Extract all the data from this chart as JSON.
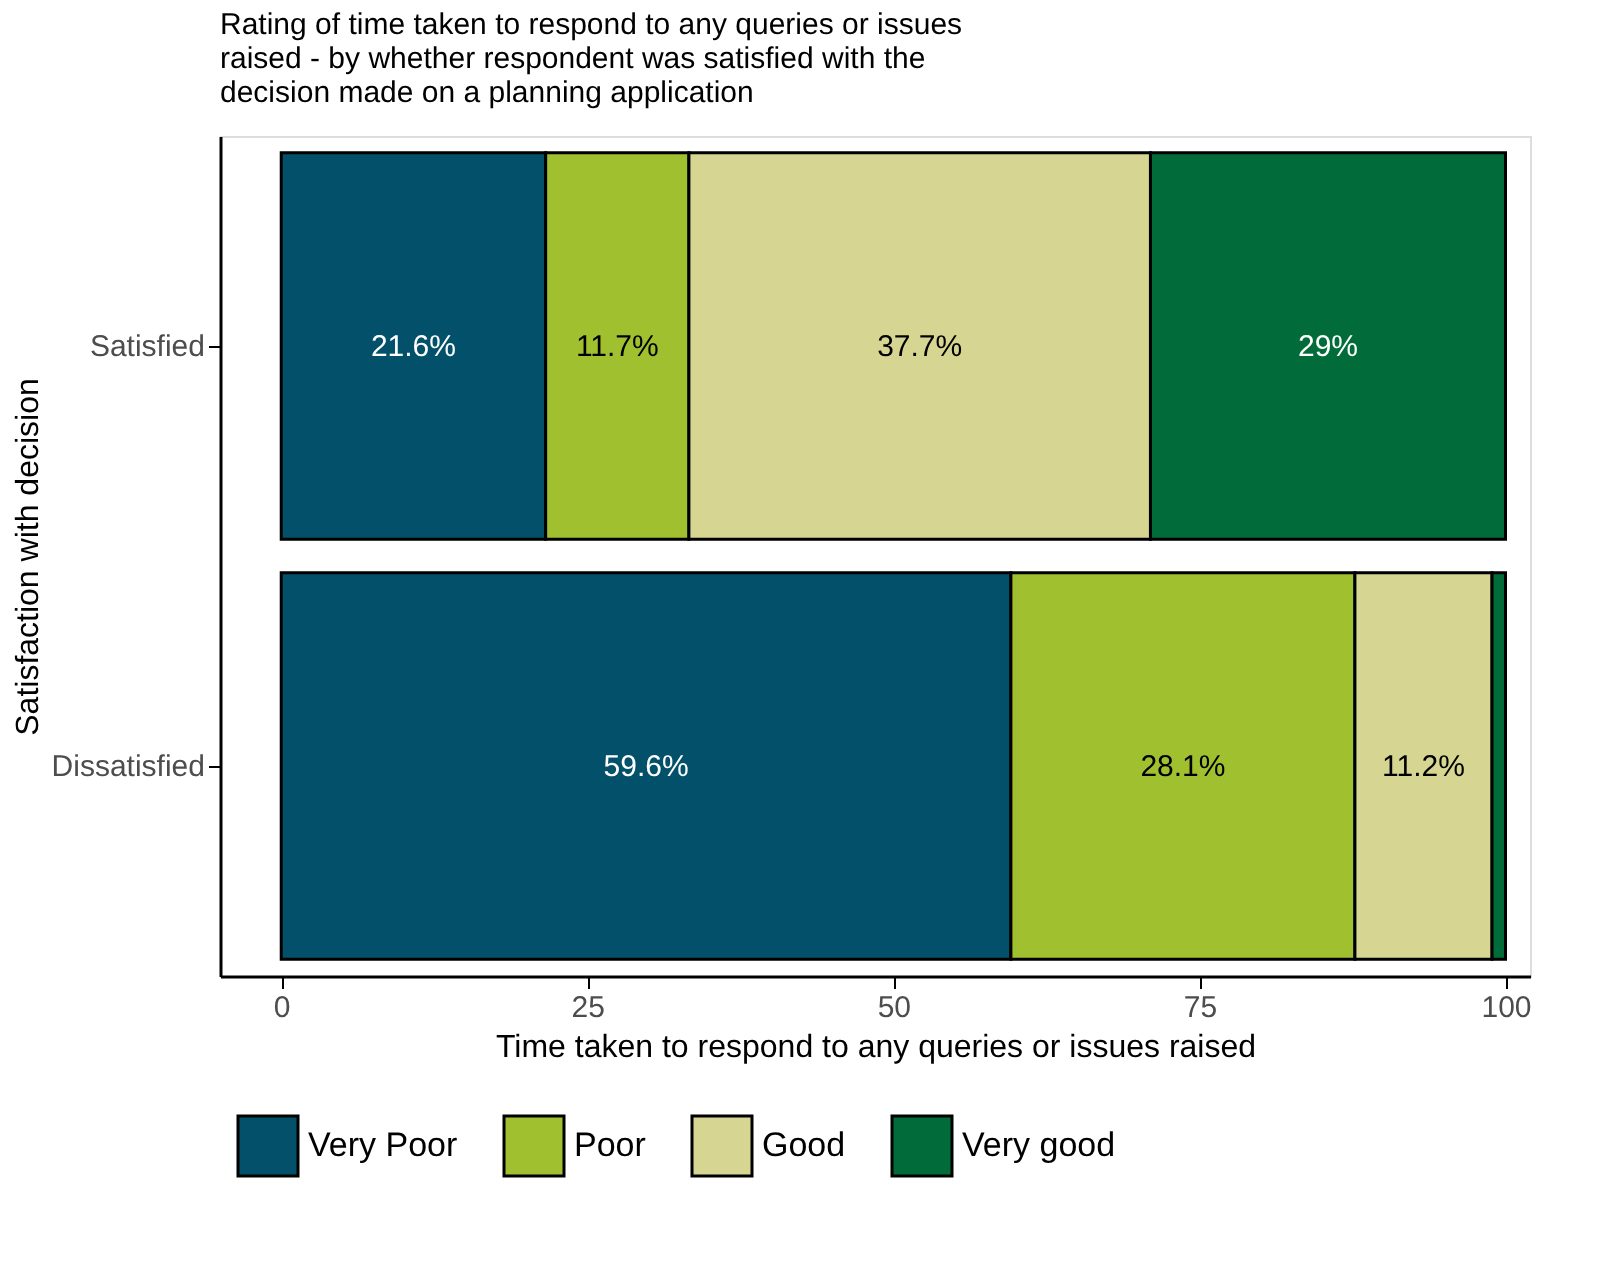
{
  "chart_data": {
    "type": "bar",
    "orientation": "horizontal",
    "stacked": true,
    "title": "Rating of time taken to respond to any queries or issues raised - by whether respondent was satisfied with the decision made on a planning application",
    "xlabel": "Time taken to respond to any queries or issues raised",
    "ylabel": "Satisfaction with decision",
    "categories": [
      "Satisfied",
      "Dissatisfied"
    ],
    "series": [
      {
        "name": "Very Poor",
        "color": "#02506a",
        "values": [
          21.6,
          59.6
        ],
        "value_labels": [
          "21.6%",
          "59.6%"
        ]
      },
      {
        "name": "Poor",
        "color": "#a1c030",
        "values": [
          11.7,
          28.1
        ],
        "value_labels": [
          "11.7%",
          "28.1%"
        ]
      },
      {
        "name": "Good",
        "color": "#d6d692",
        "values": [
          37.7,
          11.2
        ],
        "value_labels": [
          "37.7%",
          "11.2%"
        ]
      },
      {
        "name": "Very good",
        "color": "#016c39",
        "values": [
          29,
          1.1
        ],
        "value_labels": [
          "29%",
          null
        ]
      }
    ],
    "xlim": [
      -5,
      102
    ],
    "xticks": [
      0,
      25,
      50,
      75,
      100
    ],
    "grid": false,
    "legend": "bottom"
  }
}
